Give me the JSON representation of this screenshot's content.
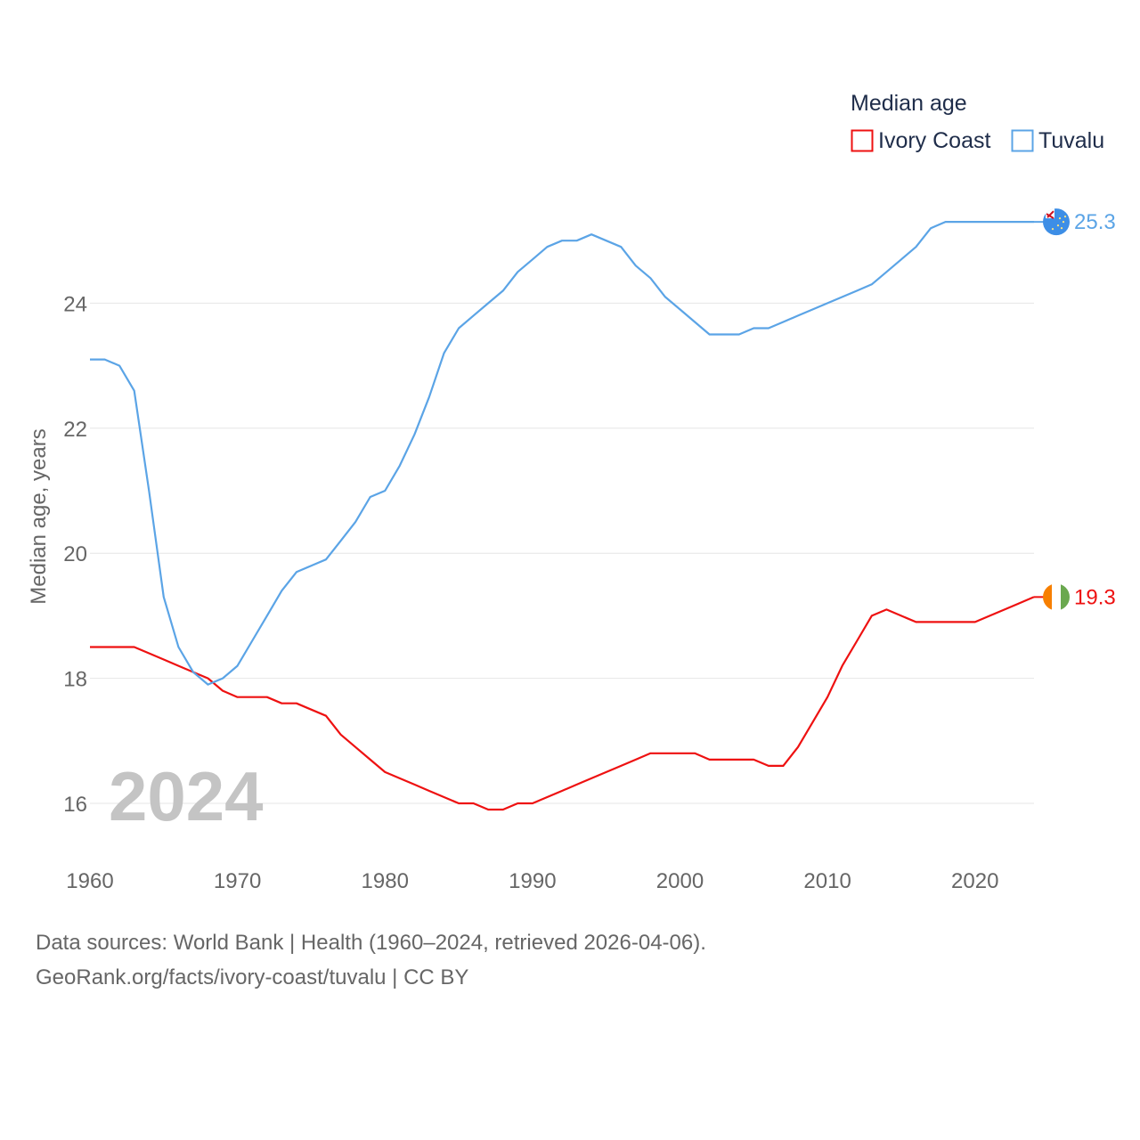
{
  "chart_data": {
    "type": "line",
    "title": "Median age",
    "xlabel": "",
    "ylabel": "Median age, years",
    "xlim": [
      1960,
      2024
    ],
    "ylim": [
      15,
      26
    ],
    "x_ticks": [
      1960,
      1970,
      1980,
      1990,
      2000,
      2010,
      2020
    ],
    "y_ticks": [
      16,
      18,
      20,
      22,
      24
    ],
    "grid": true,
    "legend_position": "top-right",
    "current_year": "2024",
    "series": [
      {
        "name": "Ivory Coast",
        "color": "#ee1111",
        "end_label": "19.3",
        "flag_icon": "ivory-coast-flag-icon",
        "x": [
          1960,
          1961,
          1962,
          1963,
          1964,
          1965,
          1966,
          1967,
          1968,
          1969,
          1970,
          1971,
          1972,
          1973,
          1974,
          1975,
          1976,
          1977,
          1978,
          1979,
          1980,
          1981,
          1982,
          1983,
          1984,
          1985,
          1986,
          1987,
          1988,
          1989,
          1990,
          1991,
          1992,
          1993,
          1994,
          1995,
          1996,
          1997,
          1998,
          1999,
          2000,
          2001,
          2002,
          2003,
          2004,
          2005,
          2006,
          2007,
          2008,
          2009,
          2010,
          2011,
          2012,
          2013,
          2014,
          2015,
          2016,
          2017,
          2018,
          2019,
          2020,
          2021,
          2022,
          2023,
          2024
        ],
        "values": [
          18.5,
          18.5,
          18.5,
          18.5,
          18.4,
          18.3,
          18.2,
          18.1,
          18.0,
          17.8,
          17.7,
          17.7,
          17.7,
          17.6,
          17.6,
          17.5,
          17.4,
          17.1,
          16.9,
          16.7,
          16.5,
          16.4,
          16.3,
          16.2,
          16.1,
          16.0,
          16.0,
          15.9,
          15.9,
          16.0,
          16.0,
          16.1,
          16.2,
          16.3,
          16.4,
          16.5,
          16.6,
          16.7,
          16.8,
          16.8,
          16.8,
          16.8,
          16.7,
          16.7,
          16.7,
          16.7,
          16.6,
          16.6,
          16.9,
          17.3,
          17.7,
          18.2,
          18.6,
          19.0,
          19.1,
          19.0,
          18.9,
          18.9,
          18.9,
          18.9,
          18.9,
          19.0,
          19.1,
          19.2,
          19.3
        ]
      },
      {
        "name": "Tuvalu",
        "color": "#5ba4e6",
        "end_label": "25.3",
        "flag_icon": "tuvalu-flag-icon",
        "x": [
          1960,
          1961,
          1962,
          1963,
          1964,
          1965,
          1966,
          1967,
          1968,
          1969,
          1970,
          1971,
          1972,
          1973,
          1974,
          1975,
          1976,
          1977,
          1978,
          1979,
          1980,
          1981,
          1982,
          1983,
          1984,
          1985,
          1986,
          1987,
          1988,
          1989,
          1990,
          1991,
          1992,
          1993,
          1994,
          1995,
          1996,
          1997,
          1998,
          1999,
          2000,
          2001,
          2002,
          2003,
          2004,
          2005,
          2006,
          2007,
          2008,
          2009,
          2010,
          2011,
          2012,
          2013,
          2014,
          2015,
          2016,
          2017,
          2018,
          2019,
          2020,
          2021,
          2022,
          2023,
          2024
        ],
        "values": [
          23.1,
          23.1,
          23.0,
          22.6,
          21.0,
          19.3,
          18.5,
          18.1,
          17.9,
          18.0,
          18.2,
          18.6,
          19.0,
          19.4,
          19.7,
          19.8,
          19.9,
          20.2,
          20.5,
          20.9,
          21.0,
          21.4,
          21.9,
          22.5,
          23.2,
          23.6,
          23.8,
          24.0,
          24.2,
          24.5,
          24.7,
          24.9,
          25.0,
          25.0,
          25.1,
          25.0,
          24.9,
          24.6,
          24.4,
          24.1,
          23.9,
          23.7,
          23.5,
          23.5,
          23.5,
          23.6,
          23.6,
          23.7,
          23.8,
          23.9,
          24.0,
          24.1,
          24.2,
          24.3,
          24.5,
          24.7,
          24.9,
          25.2,
          25.3,
          25.3,
          25.3,
          25.3,
          25.3,
          25.3,
          25.3
        ]
      }
    ]
  },
  "footer": {
    "sources": "Data sources: World Bank | Health (1960–2024, retrieved 2026-04-06).",
    "credit": "GeoRank.org/facts/ivory-coast/tuvalu | CC BY"
  }
}
